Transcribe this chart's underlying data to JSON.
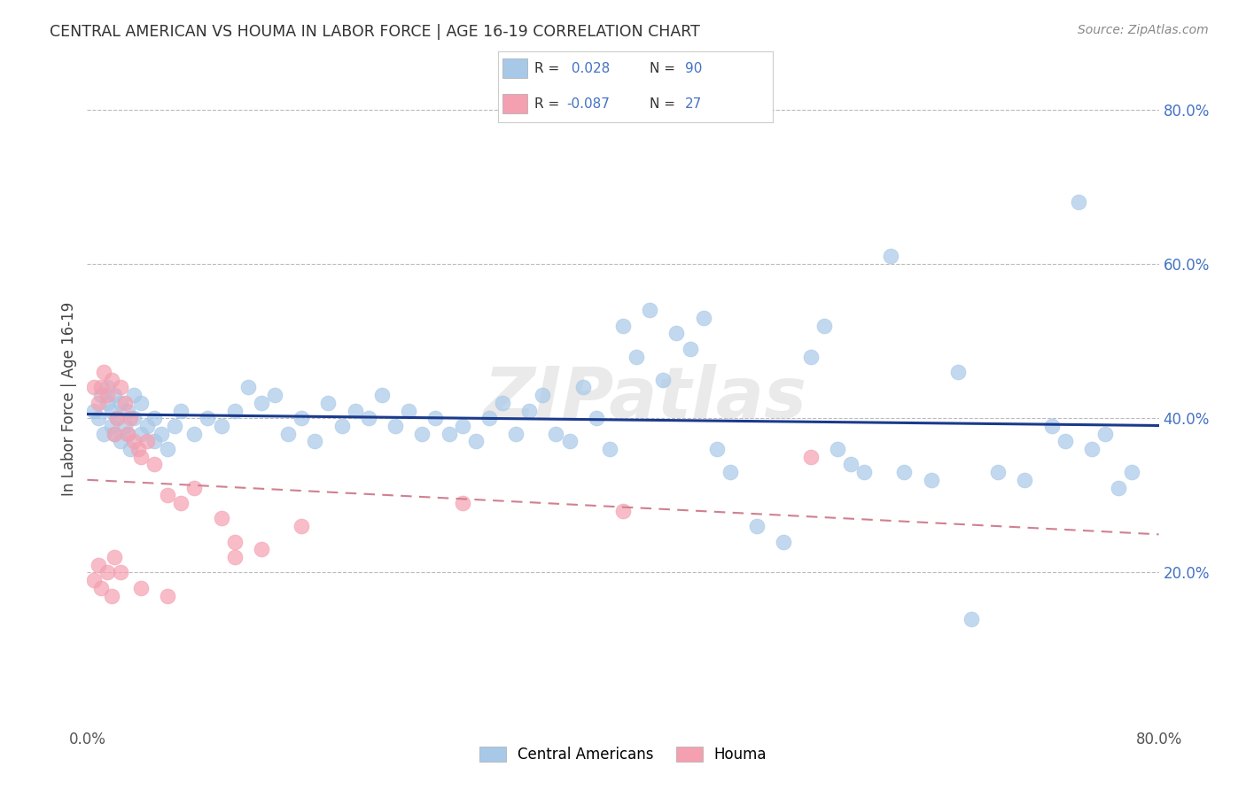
{
  "title": "CENTRAL AMERICAN VS HOUMA IN LABOR FORCE | AGE 16-19 CORRELATION CHART",
  "source": "Source: ZipAtlas.com",
  "ylabel": "In Labor Force | Age 16-19",
  "xlim": [
    0.0,
    0.8
  ],
  "ylim": [
    0.0,
    0.85
  ],
  "y_ticks_right": [
    0.2,
    0.4,
    0.6,
    0.8
  ],
  "y_tick_labels_right": [
    "20.0%",
    "40.0%",
    "60.0%",
    "80.0%"
  ],
  "blue_color": "#A8C8E8",
  "pink_color": "#F4A0B0",
  "blue_line_color": "#1A3A8C",
  "pink_line_color": "#D08090",
  "watermark": "ZIPatlas",
  "blue_scatter_x": [
    0.005,
    0.008,
    0.01,
    0.012,
    0.015,
    0.015,
    0.018,
    0.018,
    0.02,
    0.02,
    0.022,
    0.025,
    0.025,
    0.028,
    0.03,
    0.03,
    0.032,
    0.035,
    0.035,
    0.04,
    0.04,
    0.045,
    0.05,
    0.05,
    0.055,
    0.06,
    0.065,
    0.07,
    0.08,
    0.09,
    0.1,
    0.11,
    0.12,
    0.13,
    0.14,
    0.15,
    0.16,
    0.17,
    0.18,
    0.19,
    0.2,
    0.21,
    0.22,
    0.23,
    0.24,
    0.25,
    0.26,
    0.27,
    0.28,
    0.29,
    0.3,
    0.31,
    0.32,
    0.33,
    0.34,
    0.35,
    0.36,
    0.37,
    0.38,
    0.39,
    0.4,
    0.41,
    0.42,
    0.43,
    0.44,
    0.45,
    0.46,
    0.47,
    0.48,
    0.5,
    0.52,
    0.54,
    0.55,
    0.56,
    0.57,
    0.58,
    0.6,
    0.61,
    0.63,
    0.65,
    0.66,
    0.68,
    0.7,
    0.72,
    0.73,
    0.74,
    0.75,
    0.76,
    0.77,
    0.78
  ],
  "blue_scatter_y": [
    0.41,
    0.4,
    0.43,
    0.38,
    0.42,
    0.44,
    0.39,
    0.41,
    0.38,
    0.43,
    0.4,
    0.37,
    0.42,
    0.39,
    0.38,
    0.41,
    0.36,
    0.4,
    0.43,
    0.38,
    0.42,
    0.39,
    0.37,
    0.4,
    0.38,
    0.36,
    0.39,
    0.41,
    0.38,
    0.4,
    0.39,
    0.41,
    0.44,
    0.42,
    0.43,
    0.38,
    0.4,
    0.37,
    0.42,
    0.39,
    0.41,
    0.4,
    0.43,
    0.39,
    0.41,
    0.38,
    0.4,
    0.38,
    0.39,
    0.37,
    0.4,
    0.42,
    0.38,
    0.41,
    0.43,
    0.38,
    0.37,
    0.44,
    0.4,
    0.36,
    0.52,
    0.48,
    0.54,
    0.45,
    0.51,
    0.49,
    0.53,
    0.36,
    0.33,
    0.26,
    0.24,
    0.48,
    0.52,
    0.36,
    0.34,
    0.33,
    0.61,
    0.33,
    0.32,
    0.46,
    0.14,
    0.33,
    0.32,
    0.39,
    0.37,
    0.68,
    0.36,
    0.38,
    0.31,
    0.33
  ],
  "pink_scatter_x": [
    0.005,
    0.008,
    0.01,
    0.012,
    0.015,
    0.018,
    0.02,
    0.022,
    0.025,
    0.028,
    0.03,
    0.032,
    0.035,
    0.038,
    0.04,
    0.045,
    0.05,
    0.06,
    0.07,
    0.08,
    0.1,
    0.11,
    0.13,
    0.16,
    0.28,
    0.4,
    0.54
  ],
  "pink_scatter_y": [
    0.44,
    0.42,
    0.44,
    0.46,
    0.43,
    0.45,
    0.38,
    0.4,
    0.44,
    0.42,
    0.38,
    0.4,
    0.37,
    0.36,
    0.35,
    0.37,
    0.34,
    0.3,
    0.29,
    0.31,
    0.27,
    0.22,
    0.23,
    0.26,
    0.29,
    0.28,
    0.35
  ],
  "pink_extra_x": [
    0.005,
    0.008,
    0.01,
    0.015,
    0.018,
    0.02,
    0.025,
    0.04,
    0.06,
    0.11
  ],
  "pink_extra_y": [
    0.19,
    0.21,
    0.18,
    0.2,
    0.17,
    0.22,
    0.2,
    0.18,
    0.17,
    0.24
  ]
}
